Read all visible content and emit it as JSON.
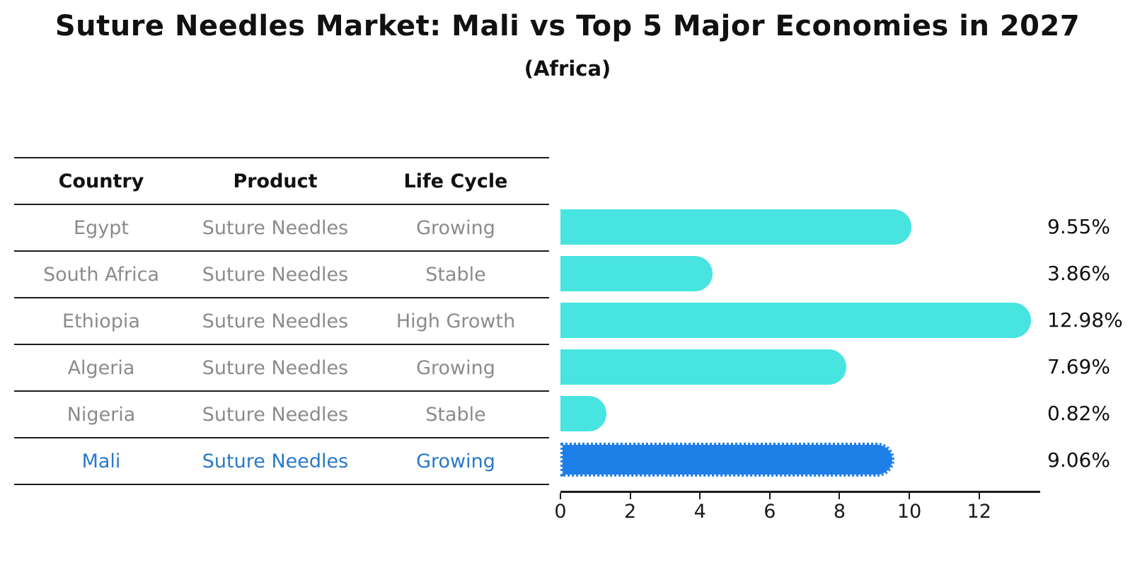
{
  "title": "Suture Needles Market: Mali vs Top 5 Major Economies in 2027",
  "subtitle": "(Africa)",
  "table": {
    "headers": [
      "Country",
      "Product",
      "Life Cycle"
    ],
    "rows": [
      {
        "country": "Egypt",
        "product": "Suture Needles",
        "life_cycle": "Growing",
        "highlight": false
      },
      {
        "country": "South Africa",
        "product": "Suture Needles",
        "life_cycle": "Stable",
        "highlight": false
      },
      {
        "country": "Ethiopia",
        "product": "Suture Needles",
        "life_cycle": "High Growth",
        "highlight": false
      },
      {
        "country": "Algeria",
        "product": "Suture Needles",
        "life_cycle": "Growing",
        "highlight": false
      },
      {
        "country": "Nigeria",
        "product": "Suture Needles",
        "life_cycle": "Stable",
        "highlight": false
      },
      {
        "country": "Mali",
        "product": "Suture Needles",
        "life_cycle": "Growing",
        "highlight": true
      }
    ]
  },
  "chart_data": {
    "type": "bar",
    "orientation": "horizontal",
    "title": "Suture Needles Market: Mali vs Top 5 Major Economies in 2027",
    "subtitle": "(Africa)",
    "categories": [
      "Egypt",
      "South Africa",
      "Ethiopia",
      "Algeria",
      "Nigeria",
      "Mali"
    ],
    "values": [
      9.55,
      3.86,
      12.98,
      7.69,
      0.82,
      9.06
    ],
    "value_labels": [
      "9.55%",
      "3.86%",
      "12.98%",
      "7.69%",
      "0.82%",
      "9.06%"
    ],
    "unit": "%",
    "xlim": [
      0,
      13.75
    ],
    "x_ticks": [
      0,
      2,
      4,
      6,
      8,
      10,
      12
    ],
    "grid": false,
    "legend": false,
    "highlight_index": 5,
    "bar_color": "#48E4E0",
    "highlight_color": "#1F7FE8",
    "highlight_text_color": "#2979C9"
  },
  "colors": {
    "background": "#ffffff",
    "table_line": "#1c1c1c",
    "muted_text": "#8b8b8b",
    "text": "#111111"
  }
}
